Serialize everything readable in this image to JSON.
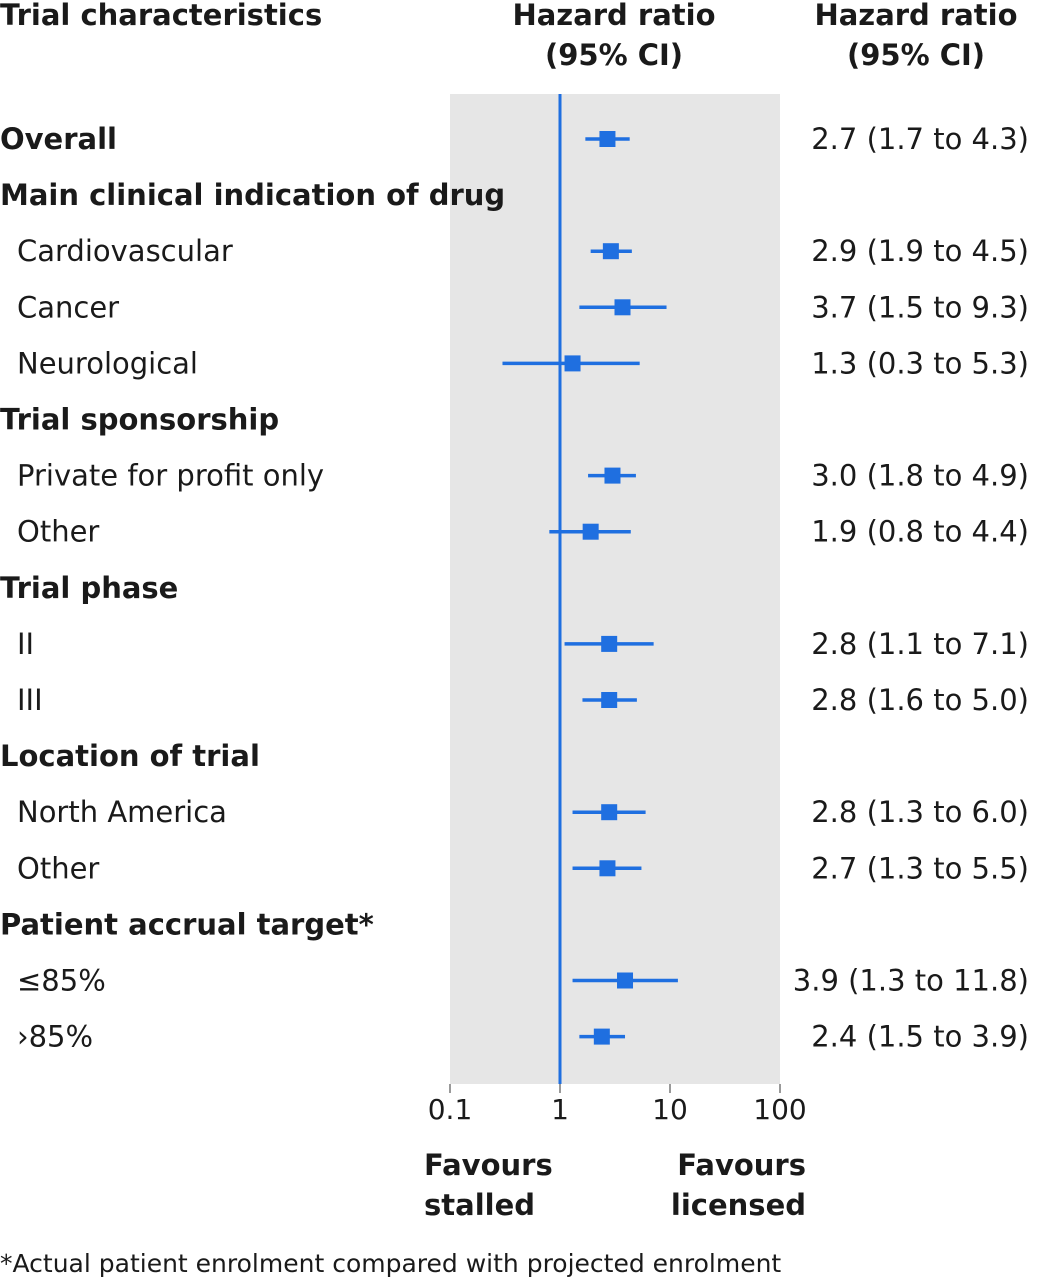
{
  "chart_data": {
    "type": "forest",
    "headers": {
      "characteristics": "Trial characteristics",
      "plot_line1": "Hazard ratio",
      "plot_line2": "(95% CI)",
      "values_line1": "Hazard ratio",
      "values_line2": "(95% CI)"
    },
    "x_scale": "log",
    "xlim": [
      0.1,
      100
    ],
    "x_ticks": [
      "0.1",
      "1",
      "10",
      "100"
    ],
    "reference_line": 1,
    "favours_left": [
      "Favours",
      "stalled"
    ],
    "favours_right": [
      "Favours",
      "licensed"
    ],
    "footnote": "*Actual patient enrolment compared with projected enrolment",
    "colors": {
      "marker": "#1f6fe0",
      "panel": "#e6e6e6",
      "text": "#1a1a1a"
    },
    "rows": [
      {
        "label": "Overall",
        "kind": "estimate",
        "bold": true,
        "hr": 2.7,
        "lo": 1.7,
        "hi": 4.3,
        "text": "2.7 (1.7 to 4.3)"
      },
      {
        "label": "Main clinical indication of drug",
        "kind": "section"
      },
      {
        "label": "Cardiovascular",
        "kind": "estimate",
        "hr": 2.9,
        "lo": 1.9,
        "hi": 4.5,
        "text": "2.9 (1.9 to 4.5)"
      },
      {
        "label": "Cancer",
        "kind": "estimate",
        "hr": 3.7,
        "lo": 1.5,
        "hi": 9.3,
        "text": "3.7 (1.5 to 9.3)"
      },
      {
        "label": "Neurological",
        "kind": "estimate",
        "hr": 1.3,
        "lo": 0.3,
        "hi": 5.3,
        "text": "1.3 (0.3 to 5.3)"
      },
      {
        "label": "Trial sponsorship",
        "kind": "section"
      },
      {
        "label": "Private for profit only",
        "kind": "estimate",
        "hr": 3.0,
        "lo": 1.8,
        "hi": 4.9,
        "text": "3.0 (1.8 to 4.9)"
      },
      {
        "label": "Other",
        "kind": "estimate",
        "hr": 1.9,
        "lo": 0.8,
        "hi": 4.4,
        "text": "1.9 (0.8 to 4.4)"
      },
      {
        "label": "Trial phase",
        "kind": "section"
      },
      {
        "label": "II",
        "kind": "estimate",
        "hr": 2.8,
        "lo": 1.1,
        "hi": 7.1,
        "text": "2.8 (1.1 to 7.1)"
      },
      {
        "label": "III",
        "kind": "estimate",
        "hr": 2.8,
        "lo": 1.6,
        "hi": 5.0,
        "text": "2.8 (1.6 to 5.0)"
      },
      {
        "label": "Location of trial",
        "kind": "section"
      },
      {
        "label": "North America",
        "kind": "estimate",
        "hr": 2.8,
        "lo": 1.3,
        "hi": 6.0,
        "text": "2.8 (1.3 to 6.0)"
      },
      {
        "label": "Other",
        "kind": "estimate",
        "hr": 2.7,
        "lo": 1.3,
        "hi": 5.5,
        "text": "2.7 (1.3 to 5.5)"
      },
      {
        "label": "Patient accrual target*",
        "kind": "section"
      },
      {
        "label": "≤85%",
        "kind": "estimate",
        "hr": 3.9,
        "lo": 1.3,
        "hi": 11.8,
        "text": "3.9 (1.3 to 11.8)"
      },
      {
        "label": "›85%",
        "kind": "estimate",
        "hr": 2.4,
        "lo": 1.5,
        "hi": 3.9,
        "text": "2.4 (1.5 to 3.9)"
      }
    ]
  }
}
